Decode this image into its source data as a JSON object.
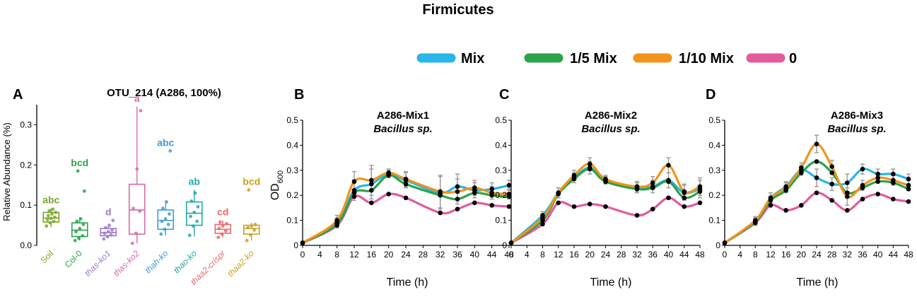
{
  "figure": {
    "super_title": "Firmicutes",
    "legend": [
      {
        "label": "Mix",
        "color": "#29b6e8"
      },
      {
        "label": "1/5 Mix",
        "color": "#2ca24b"
      },
      {
        "label": "1/10 Mix",
        "color": "#f2941a"
      },
      {
        "label": "0",
        "color": "#e35a9f"
      }
    ]
  },
  "chart_data": [
    {
      "panel": "A",
      "type": "box",
      "title": "OTU_214 (A286, 100%)",
      "ylabel": "Relative Abundance (%)",
      "ylim": [
        0,
        0.35
      ],
      "yticks": [
        "0.0",
        "0.1",
        "0.2",
        "0.3"
      ],
      "yticks_values": [
        0,
        0.1,
        0.2,
        0.3
      ],
      "categories": [
        "Soil",
        "Col-0",
        "thas-ko1",
        "thas-ko2",
        "thah-ko",
        "thao-ko",
        "thaa2-crispr",
        "thaa2-ko"
      ],
      "italic": [
        false,
        false,
        true,
        true,
        true,
        true,
        true,
        true
      ],
      "colors": [
        "#7aa62a",
        "#2ca24b",
        "#9b7bc4",
        "#d46aa8",
        "#3f9bd6",
        "#23a8a8",
        "#e86a6a",
        "#c9a21f"
      ],
      "significance": [
        "abc",
        "bcd",
        "d",
        "a",
        "abc",
        "ab",
        "cd",
        "bcd"
      ],
      "boxes": [
        {
          "min": 0.045,
          "q1": 0.058,
          "median": 0.068,
          "q3": 0.082,
          "max": 0.092
        },
        {
          "min": 0.012,
          "q1": 0.022,
          "median": 0.038,
          "q3": 0.056,
          "max": 0.07
        },
        {
          "min": 0.018,
          "q1": 0.024,
          "median": 0.032,
          "q3": 0.042,
          "max": 0.05
        },
        {
          "min": 0.005,
          "q1": 0.028,
          "median": 0.088,
          "q3": 0.152,
          "max": 0.345
        },
        {
          "min": 0.025,
          "q1": 0.04,
          "median": 0.062,
          "q3": 0.088,
          "max": 0.112
        },
        {
          "min": 0.022,
          "q1": 0.05,
          "median": 0.08,
          "q3": 0.108,
          "max": 0.138
        },
        {
          "min": 0.02,
          "q1": 0.03,
          "median": 0.04,
          "q3": 0.052,
          "max": 0.062
        },
        {
          "min": 0.012,
          "q1": 0.028,
          "median": 0.042,
          "q3": 0.05,
          "max": 0.056
        }
      ],
      "points": [
        [
          0.048,
          0.056,
          0.06,
          0.064,
          0.067,
          0.07,
          0.074,
          0.078,
          0.082,
          0.086,
          0.09
        ],
        [
          0.012,
          0.018,
          0.024,
          0.034,
          0.042,
          0.052,
          0.06,
          0.066,
          0.135,
          0.185
        ],
        [
          0.016,
          0.022,
          0.026,
          0.03,
          0.034,
          0.038,
          0.044,
          0.05,
          0.062
        ],
        [
          0.005,
          0.03,
          0.085,
          0.092,
          0.19,
          0.335
        ],
        [
          0.028,
          0.04,
          0.052,
          0.06,
          0.066,
          0.078,
          0.092,
          0.108,
          0.235
        ],
        [
          0.025,
          0.048,
          0.06,
          0.072,
          0.082,
          0.096,
          0.11,
          0.13
        ],
        [
          0.02,
          0.028,
          0.036,
          0.042,
          0.048,
          0.054,
          0.058
        ],
        [
          0.012,
          0.026,
          0.038,
          0.044,
          0.048,
          0.052,
          0.138
        ]
      ]
    },
    {
      "panel": "B",
      "type": "line",
      "title": "A286-Mix1",
      "subtitle": "Bacillus sp.",
      "xlabel": "Time (h)",
      "ylabel": "OD",
      "ylabel_sub": "600",
      "xlim": [
        0,
        48
      ],
      "ylim": [
        0,
        0.5
      ],
      "xticks": [
        "0",
        "4",
        "8",
        "12",
        "16",
        "20",
        "24",
        "28",
        "32",
        "36",
        "40",
        "44",
        "48"
      ],
      "yticks": [
        "0",
        "0.1",
        "0.2",
        "0.3",
        "0.4",
        "0.5"
      ],
      "x": [
        0,
        8,
        12,
        16,
        20,
        24,
        32,
        36,
        40,
        44,
        48
      ],
      "series": [
        {
          "name": "Mix",
          "values": [
            0.01,
            0.09,
            0.22,
            0.245,
            0.285,
            0.26,
            0.21,
            0.235,
            0.22,
            0.225,
            0.24
          ]
        },
        {
          "name": "1/5 Mix",
          "values": [
            0.01,
            0.085,
            0.21,
            0.22,
            0.28,
            0.245,
            0.2,
            0.185,
            0.21,
            0.2,
            0.195
          ]
        },
        {
          "name": "1/10 Mix",
          "values": [
            0.01,
            0.1,
            0.255,
            0.26,
            0.29,
            0.265,
            0.215,
            0.215,
            0.23,
            0.21,
            0.205
          ]
        },
        {
          "name": "0",
          "values": [
            0.01,
            0.08,
            0.195,
            0.17,
            0.205,
            0.19,
            0.13,
            0.145,
            0.17,
            0.16,
            0.155
          ]
        }
      ],
      "errors": [
        0,
        0.02,
        0.04,
        0.06,
        0.015,
        0.03,
        0.065,
        0.05,
        0.03,
        0.025,
        0.02
      ]
    },
    {
      "panel": "C",
      "type": "line",
      "title": "A286-Mix2",
      "subtitle": "Bacillus sp.",
      "xlabel": "Time (h)",
      "xlim": [
        0,
        48
      ],
      "ylim": [
        0,
        0.5
      ],
      "xticks": [
        "0",
        "4",
        "8",
        "12",
        "16",
        "20",
        "24",
        "28",
        "32",
        "36",
        "40",
        "44",
        "48"
      ],
      "yticks": [
        "0",
        "0.1",
        "0.2",
        "0.3",
        "0.4",
        "0.5"
      ],
      "x": [
        0,
        8,
        12,
        16,
        20,
        24,
        32,
        36,
        40,
        44,
        48
      ],
      "series": [
        {
          "name": "Mix",
          "values": [
            0.01,
            0.12,
            0.21,
            0.27,
            0.31,
            0.26,
            0.23,
            0.235,
            0.26,
            0.21,
            0.225
          ]
        },
        {
          "name": "1/5 Mix",
          "values": [
            0.01,
            0.1,
            0.205,
            0.265,
            0.305,
            0.255,
            0.225,
            0.23,
            0.255,
            0.19,
            0.215
          ]
        },
        {
          "name": "1/10 Mix",
          "values": [
            0.01,
            0.11,
            0.21,
            0.28,
            0.325,
            0.265,
            0.235,
            0.25,
            0.32,
            0.215,
            0.235
          ]
        },
        {
          "name": "0",
          "values": [
            0.01,
            0.085,
            0.17,
            0.155,
            0.165,
            0.155,
            0.12,
            0.145,
            0.19,
            0.155,
            0.17
          ]
        }
      ],
      "errors": [
        0,
        0.015,
        0.02,
        0.02,
        0.025,
        0.015,
        0.02,
        0.025,
        0.03,
        0.03,
        0.035
      ]
    },
    {
      "panel": "D",
      "type": "line",
      "title": "A286-Mix3",
      "subtitle": "Bacillus sp.",
      "xlabel": "Time (h)",
      "xlim": [
        0,
        48
      ],
      "ylim": [
        0,
        0.5
      ],
      "xticks": [
        "0",
        "4",
        "8",
        "12",
        "16",
        "20",
        "24",
        "28",
        "32",
        "36",
        "40",
        "44",
        "48"
      ],
      "yticks": [
        "0",
        "0.1",
        "0.2",
        "0.3",
        "0.4",
        "0.5"
      ],
      "x": [
        0,
        8,
        12,
        16,
        20,
        24,
        28,
        32,
        36,
        40,
        44,
        48
      ],
      "series": [
        {
          "name": "Mix",
          "values": [
            0.01,
            0.095,
            0.19,
            0.235,
            0.3,
            0.27,
            0.245,
            0.25,
            0.305,
            0.285,
            0.285,
            0.265
          ]
        },
        {
          "name": "1/5 Mix",
          "values": [
            0.01,
            0.095,
            0.18,
            0.22,
            0.29,
            0.335,
            0.29,
            0.21,
            0.23,
            0.255,
            0.25,
            0.225
          ]
        },
        {
          "name": "1/10 Mix",
          "values": [
            0.01,
            0.1,
            0.19,
            0.23,
            0.31,
            0.405,
            0.315,
            0.195,
            0.24,
            0.27,
            0.26,
            0.24
          ]
        },
        {
          "name": "0",
          "values": [
            0.01,
            0.09,
            0.16,
            0.14,
            0.16,
            0.21,
            0.18,
            0.14,
            0.185,
            0.205,
            0.185,
            0.175
          ]
        }
      ],
      "errors": [
        0,
        0.015,
        0.02,
        0.02,
        0.02,
        0.035,
        0.025,
        0.035,
        0.02,
        0.02,
        0.02,
        0.02
      ]
    }
  ]
}
